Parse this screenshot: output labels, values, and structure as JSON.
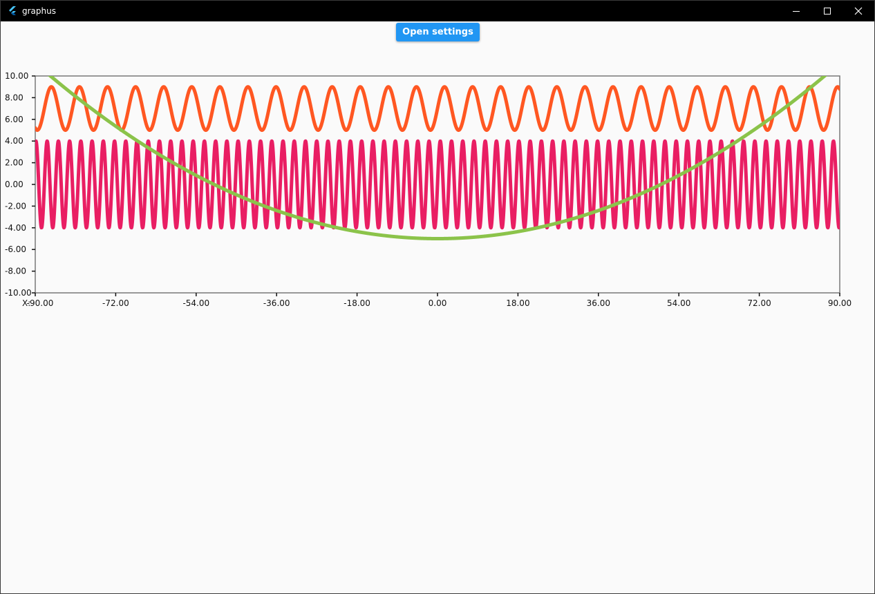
{
  "window": {
    "title": "graphus",
    "controls": [
      "minimize-icon",
      "maximize-icon",
      "close-icon"
    ],
    "titlebar_color": "#000000"
  },
  "toolbar": {
    "settings_label": "Open settings",
    "accent": "#2196f3"
  },
  "chart_data": {
    "type": "line",
    "title": "",
    "xlabel": "X:",
    "ylabel": "",
    "xlim": [
      -90,
      90
    ],
    "ylim": [
      -10,
      10
    ],
    "x_ticks": [
      "-90.00",
      "-72.00",
      "-54.00",
      "-36.00",
      "-18.00",
      "0.00",
      "18.00",
      "36.00",
      "54.00",
      "72.00",
      "90.00"
    ],
    "y_ticks": [
      "10.00",
      "8.00",
      "6.00",
      "4.00",
      "2.00",
      "0.00",
      "-2.00",
      "-4.00",
      "-6.00",
      "-8.00",
      "-10.00"
    ],
    "grid": false,
    "legend": "none",
    "series": [
      {
        "color": "#ff5722",
        "function": "y = 7 + 2*sin(x)",
        "x": [
          -90,
          -84,
          -78,
          -72,
          -66,
          -60,
          -54,
          -48,
          -42,
          -36,
          -30,
          -24,
          -18,
          -12,
          -6,
          0,
          6,
          12,
          18,
          24,
          30,
          36,
          42,
          48,
          54,
          60,
          66,
          72,
          78,
          84,
          90
        ],
        "values": [
          8.79,
          5.27,
          8.03,
          6.49,
          7.05,
          6.39,
          8.99,
          5.62,
          8.82,
          5.31,
          7.01,
          7.0,
          8.97,
          5.62,
          8.0,
          7.0,
          5.99,
          7.99,
          8.72,
          5.39,
          6.98,
          7.0,
          8.68,
          5.75,
          8.99,
          6.38,
          6.06,
          7.62,
          7.35,
          5.63,
          7.98
        ]
      },
      {
        "color": "#e91e63",
        "function": "y = 4*sin(2.5*x)",
        "x": [
          -90,
          -84,
          -78,
          -72,
          -66,
          -60,
          -54,
          -48,
          -42,
          -36,
          -30,
          -24,
          -18,
          -12,
          -6,
          0,
          6,
          12,
          18,
          24,
          30,
          36,
          42,
          48,
          54,
          60,
          66,
          72,
          78,
          84,
          90
        ],
        "values": [
          -2.48,
          -1.84,
          3.97,
          -3.55,
          2.44,
          -2.23,
          -3.25,
          3.93,
          0.36,
          -0.52,
          3.82,
          -0.77,
          4.0,
          3.26,
          -3.49,
          0.0,
          3.49,
          -3.26,
          -4.0,
          0.77,
          -3.82,
          0.52,
          -0.36,
          -3.93,
          3.25,
          2.23,
          -2.44,
          3.55,
          -3.97,
          1.84,
          2.48
        ]
      },
      {
        "color": "#8bc34a",
        "function": "y = x^2/500 - 5",
        "x": [
          -90,
          -84,
          -78,
          -72,
          -66,
          -60,
          -54,
          -48,
          -42,
          -36,
          -30,
          -24,
          -18,
          -12,
          -6,
          0,
          6,
          12,
          18,
          24,
          30,
          36,
          42,
          48,
          54,
          60,
          66,
          72,
          78,
          84,
          90
        ],
        "values": [
          11.2,
          9.11,
          7.17,
          5.37,
          3.71,
          2.2,
          0.83,
          -0.39,
          -1.47,
          -2.41,
          -3.2,
          -3.85,
          -4.35,
          -4.71,
          -4.93,
          -5.0,
          -4.93,
          -4.71,
          -4.35,
          -3.85,
          -3.2,
          -2.41,
          -1.47,
          -0.39,
          0.83,
          2.2,
          3.71,
          5.37,
          7.17,
          9.11,
          11.2
        ]
      }
    ]
  }
}
